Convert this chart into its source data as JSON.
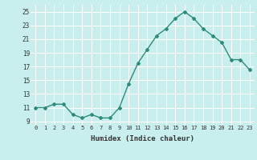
{
  "x": [
    0,
    1,
    2,
    3,
    4,
    5,
    6,
    7,
    8,
    9,
    10,
    11,
    12,
    13,
    14,
    15,
    16,
    17,
    18,
    19,
    20,
    21,
    22,
    23
  ],
  "y": [
    11,
    11,
    11.5,
    11.5,
    10,
    9.5,
    10,
    9.5,
    9.5,
    11,
    14.5,
    17.5,
    19.5,
    21.5,
    22.5,
    24,
    25,
    24,
    22.5,
    21.5,
    20.5,
    18,
    18,
    16.5
  ],
  "line_color": "#2E8B7A",
  "bg_color": "#C8EEED",
  "grid_color": "#FFFFFF",
  "xlabel": "Humidex (Indice chaleur)",
  "ylim": [
    8.5,
    26
  ],
  "xlim": [
    -0.5,
    23.5
  ],
  "yticks": [
    9,
    11,
    13,
    15,
    17,
    19,
    21,
    23,
    25
  ],
  "xtick_labels": [
    "0",
    "1",
    "2",
    "3",
    "4",
    "5",
    "6",
    "7",
    "8",
    "9",
    "10",
    "11",
    "12",
    "13",
    "14",
    "15",
    "16",
    "17",
    "18",
    "19",
    "20",
    "21",
    "22",
    "23"
  ],
  "marker": "D",
  "marker_size": 2.0,
  "linewidth": 1.0
}
